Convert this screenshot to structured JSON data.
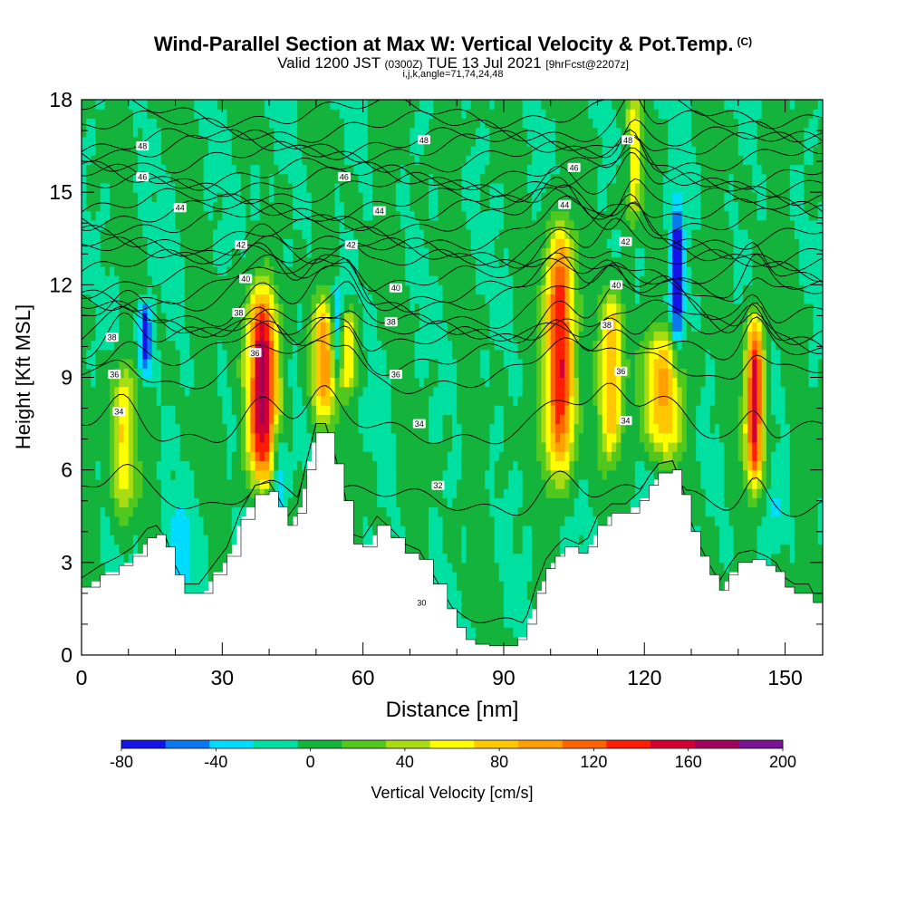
{
  "header": {
    "title": "Wind-Parallel Section at Max W: Vertical Velocity & Pot.Temp.",
    "copyright": "(C)",
    "valid_prefix": "Valid 1200 JST",
    "valid_utc": "(0300Z)",
    "valid_date": "TUE 13 Jul 2021",
    "forecast": "[9hrFcst@2207z]",
    "indices": "i,j,k,angle=71,74,24,48"
  },
  "chart_data": {
    "type": "heatmap",
    "xlabel": "Distance [nm]",
    "ylabel": "Height [Kft MSL]",
    "xlim": [
      0,
      158
    ],
    "ylim": [
      0,
      18
    ],
    "xticks": [
      0,
      30,
      60,
      90,
      120,
      150
    ],
    "yticks": [
      0,
      3,
      6,
      9,
      12,
      15,
      18
    ],
    "colorbar": {
      "label": "Vertical Velocity [cm/s]",
      "tick_labels": [
        "-80",
        "-40",
        "0",
        "40",
        "80",
        "120",
        "160",
        "200"
      ],
      "levels": [
        -80,
        -60,
        -40,
        -20,
        0,
        20,
        40,
        60,
        80,
        100,
        120,
        140,
        160,
        180,
        200
      ],
      "colors": [
        "#1414e6",
        "#0a78f0",
        "#00dcff",
        "#00e0a0",
        "#14b43c",
        "#50c81e",
        "#aadc14",
        "#ffff00",
        "#ffc800",
        "#ffa000",
        "#ff6400",
        "#ff1e00",
        "#d20032",
        "#a0005a",
        "#7a1496"
      ]
    },
    "terrain_kft": [
      [
        0,
        2.2
      ],
      [
        4,
        2.6
      ],
      [
        8,
        2.9
      ],
      [
        11,
        3.2
      ],
      [
        14,
        3.8
      ],
      [
        16,
        3.9
      ],
      [
        18,
        3.5
      ],
      [
        20,
        2.6
      ],
      [
        22,
        2.0
      ],
      [
        25,
        2.0
      ],
      [
        28,
        2.6
      ],
      [
        31,
        3.2
      ],
      [
        34,
        4.4
      ],
      [
        37,
        5.2
      ],
      [
        40,
        5.3
      ],
      [
        42,
        4.8
      ],
      [
        44,
        4.2
      ],
      [
        46,
        4.6
      ],
      [
        48,
        6.0
      ],
      [
        50,
        7.2
      ],
      [
        52,
        7.2
      ],
      [
        54,
        6.2
      ],
      [
        56,
        5.0
      ],
      [
        58,
        3.6
      ],
      [
        60,
        3.5
      ],
      [
        63,
        4.2
      ],
      [
        66,
        3.8
      ],
      [
        69,
        3.3
      ],
      [
        72,
        3.1
      ],
      [
        75,
        2.3
      ],
      [
        78,
        1.5
      ],
      [
        80,
        0.9
      ],
      [
        82,
        0.5
      ],
      [
        84,
        0.35
      ],
      [
        87,
        0.3
      ],
      [
        90,
        0.3
      ],
      [
        93,
        0.5
      ],
      [
        95,
        1.0
      ],
      [
        97,
        2.0
      ],
      [
        99,
        2.8
      ],
      [
        101,
        3.2
      ],
      [
        103,
        3.5
      ],
      [
        106,
        3.3
      ],
      [
        108,
        3.5
      ],
      [
        110,
        4.2
      ],
      [
        113,
        4.6
      ],
      [
        116,
        4.6
      ],
      [
        119,
        5.0
      ],
      [
        121,
        5.5
      ],
      [
        123,
        5.9
      ],
      [
        126,
        6.0
      ],
      [
        128,
        5.2
      ],
      [
        130,
        4.0
      ],
      [
        132,
        3.2
      ],
      [
        134,
        2.6
      ],
      [
        136,
        2.1
      ],
      [
        138,
        2.6
      ],
      [
        140,
        3.0
      ],
      [
        143,
        3.1
      ],
      [
        146,
        2.9
      ],
      [
        148,
        2.7
      ],
      [
        150,
        2.2
      ],
      [
        152,
        2.0
      ],
      [
        155,
        2.0
      ],
      [
        156,
        1.7
      ],
      [
        158,
        1.7
      ]
    ],
    "updrafts": [
      {
        "x": 9,
        "w": 2.5,
        "bot": 4.5,
        "top": 9.5,
        "peak": 80
      },
      {
        "x": 38.5,
        "w": 3.2,
        "bot": 5.5,
        "top": 11.8,
        "peak": 180
      },
      {
        "x": 51.5,
        "w": 2.4,
        "bot": 7.5,
        "top": 11.5,
        "peak": 110
      },
      {
        "x": 57,
        "w": 1.8,
        "bot": 8.5,
        "top": 11.2,
        "peak": 80
      },
      {
        "x": 102,
        "w": 3.0,
        "bot": 5.8,
        "top": 13.8,
        "peak": 160
      },
      {
        "x": 113,
        "w": 2.4,
        "bot": 6.5,
        "top": 11.8,
        "peak": 100
      },
      {
        "x": 117.5,
        "w": 1.8,
        "bot": 14.0,
        "top": 18.0,
        "peak": 80
      },
      {
        "x": 124,
        "w": 4.5,
        "bot": 6.5,
        "top": 10.5,
        "peak": 90
      },
      {
        "x": 143.5,
        "w": 1.8,
        "bot": 5.5,
        "top": 11.0,
        "peak": 170
      }
    ],
    "downdrafts": [
      {
        "x": 13.5,
        "w": 1.5,
        "bot": 9.0,
        "top": 11.5,
        "peak": -75
      },
      {
        "x": 42,
        "w": 1.8,
        "bot": 4.5,
        "top": 7.5,
        "peak": -60
      },
      {
        "x": 21,
        "w": 2.5,
        "bot": 2.2,
        "top": 5.0,
        "peak": -30
      },
      {
        "x": 54.5,
        "w": 1.2,
        "bot": 9.0,
        "top": 12.0,
        "peak": -60
      },
      {
        "x": 37,
        "w": 1.0,
        "bot": 14.0,
        "top": 16.0,
        "peak": -30
      },
      {
        "x": 127,
        "w": 1.4,
        "bot": 9.5,
        "top": 15.0,
        "peak": -75
      },
      {
        "x": 116.5,
        "w": 0.9,
        "bot": 15.0,
        "top": 17.0,
        "peak": -55
      },
      {
        "x": 148,
        "w": 1.5,
        "bot": 3.5,
        "top": 5.5,
        "peak": -25
      }
    ],
    "isentropes_K": [
      30,
      32,
      34,
      36,
      38,
      40,
      42,
      44,
      46,
      48
    ],
    "isentrope_labels": [
      {
        "x": 13,
        "y": 16.5,
        "v": "48"
      },
      {
        "x": 73,
        "y": 16.7,
        "v": "48"
      },
      {
        "x": 116.5,
        "y": 16.7,
        "v": "48"
      },
      {
        "x": 13,
        "y": 15.5,
        "v": "46"
      },
      {
        "x": 56,
        "y": 15.5,
        "v": "46"
      },
      {
        "x": 105,
        "y": 15.8,
        "v": "46"
      },
      {
        "x": 21,
        "y": 14.5,
        "v": "44"
      },
      {
        "x": 63.5,
        "y": 14.4,
        "v": "44"
      },
      {
        "x": 103,
        "y": 14.6,
        "v": "44"
      },
      {
        "x": 34,
        "y": 13.3,
        "v": "42"
      },
      {
        "x": 57.5,
        "y": 13.3,
        "v": "42"
      },
      {
        "x": 116,
        "y": 13.4,
        "v": "42"
      },
      {
        "x": 35,
        "y": 12.2,
        "v": "40"
      },
      {
        "x": 67,
        "y": 11.9,
        "v": "40"
      },
      {
        "x": 114,
        "y": 12.0,
        "v": "40"
      },
      {
        "x": 6.5,
        "y": 10.3,
        "v": "38"
      },
      {
        "x": 33.5,
        "y": 11.1,
        "v": "38"
      },
      {
        "x": 66,
        "y": 10.8,
        "v": "38"
      },
      {
        "x": 112,
        "y": 10.7,
        "v": "38"
      },
      {
        "x": 7,
        "y": 9.1,
        "v": "36"
      },
      {
        "x": 37,
        "y": 9.8,
        "v": "36"
      },
      {
        "x": 67,
        "y": 9.1,
        "v": "36"
      },
      {
        "x": 115,
        "y": 9.2,
        "v": "36"
      },
      {
        "x": 8,
        "y": 7.9,
        "v": "34"
      },
      {
        "x": 72,
        "y": 7.5,
        "v": "34"
      },
      {
        "x": 116,
        "y": 7.6,
        "v": "34"
      },
      {
        "x": 76,
        "y": 5.5,
        "v": "32"
      },
      {
        "x": 72.5,
        "y": 1.7,
        "v": "30"
      }
    ]
  }
}
